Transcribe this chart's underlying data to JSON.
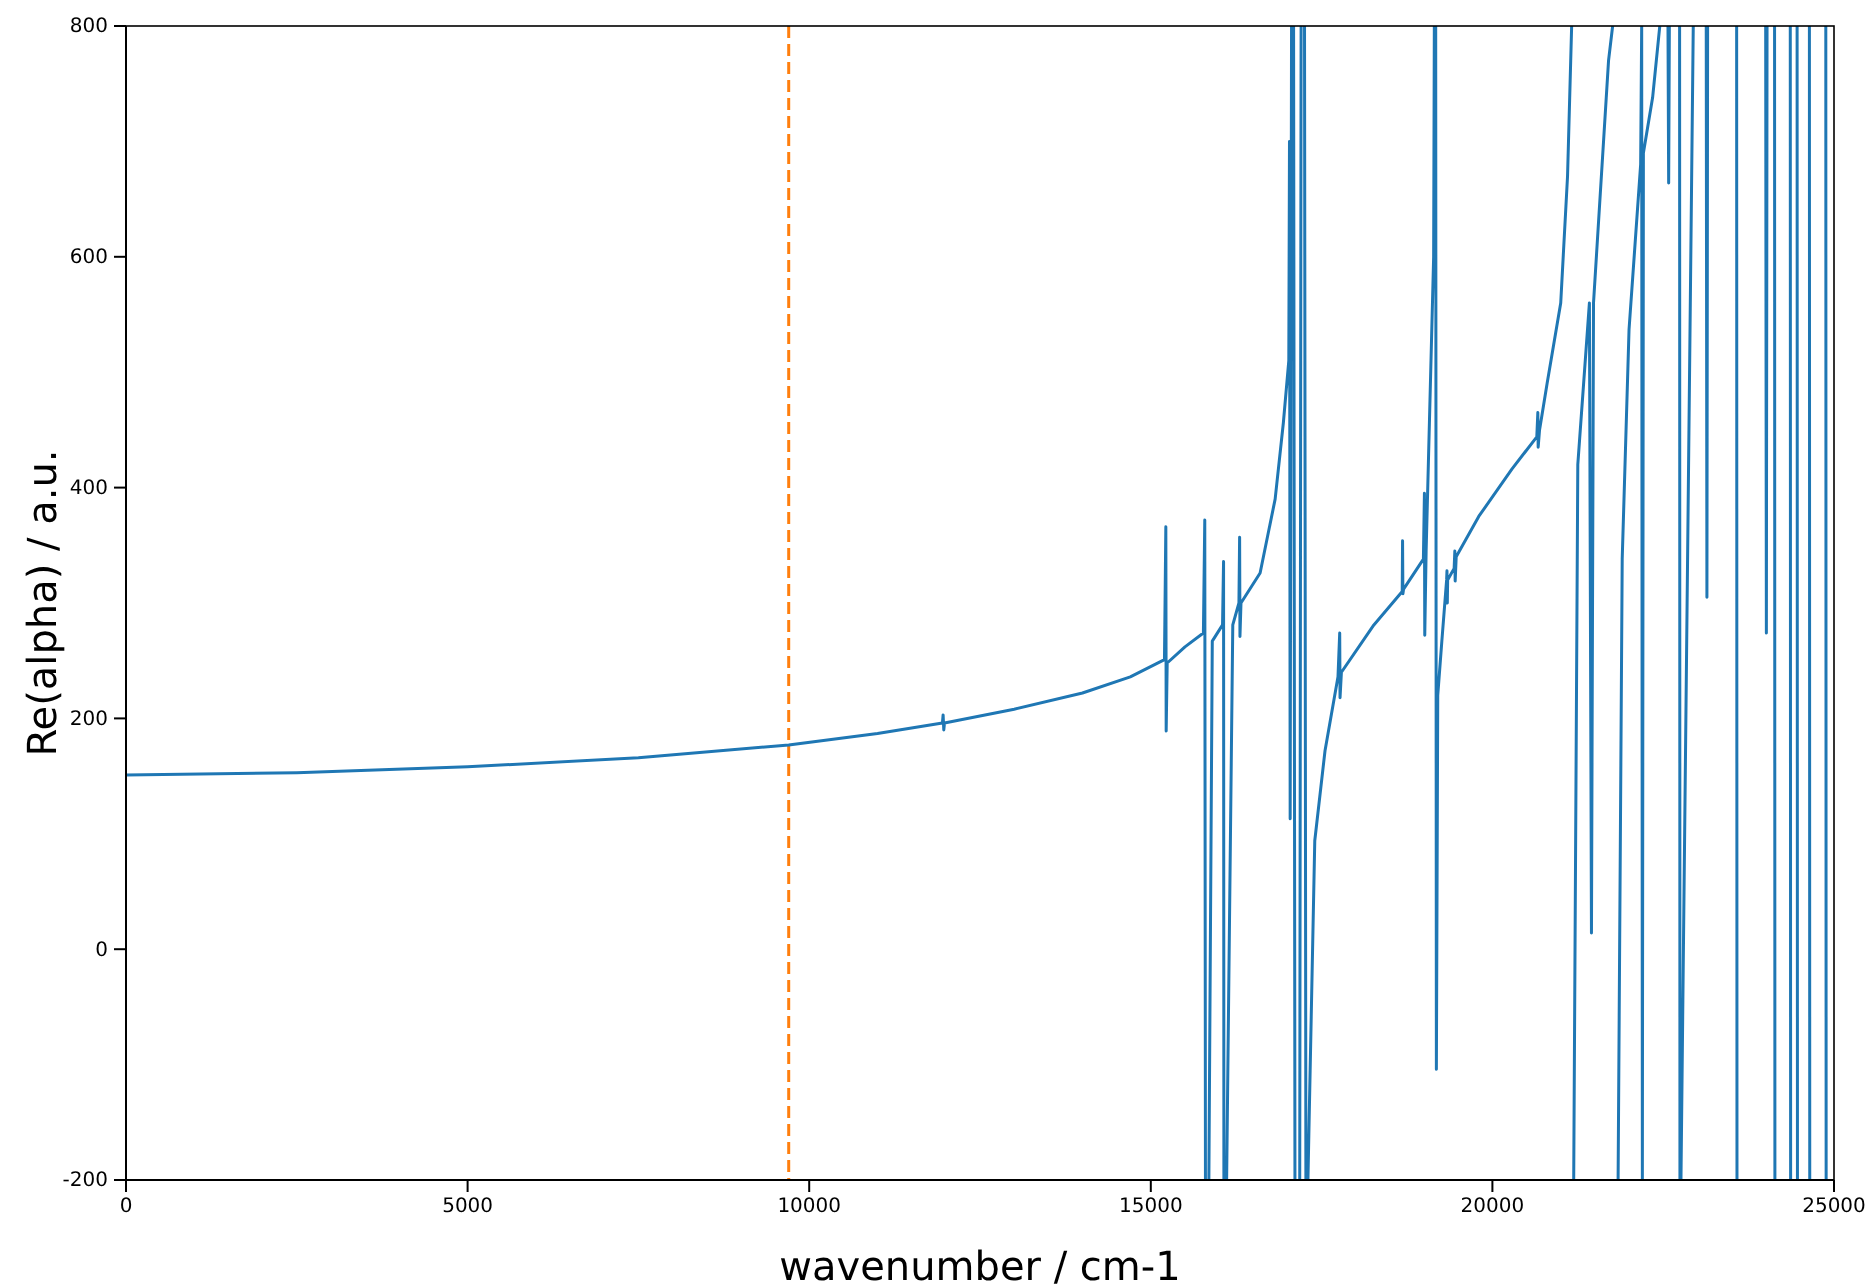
{
  "chart_data": {
    "type": "line",
    "xlabel": "wavenumber / cm-1",
    "ylabel": "Re(alpha) / a.u.",
    "xlim": [
      0,
      25000
    ],
    "ylim": [
      -200,
      800
    ],
    "xticks": [
      0,
      5000,
      10000,
      15000,
      20000,
      25000
    ],
    "yticks": [
      -200,
      0,
      200,
      400,
      600,
      800
    ],
    "grid": false,
    "marker": "none",
    "line_style": "solid",
    "ref_lines": [
      {
        "axis": "x",
        "value": 9700,
        "color": "#ff7f0e",
        "line_style": "dashed"
      }
    ],
    "series": [
      {
        "color": "#1f77b4",
        "x": [
          0,
          2500,
          5000,
          7500,
          9700,
          11000,
          11950,
          11960,
          11970,
          11980,
          13000,
          14000,
          14700,
          15200,
          15220,
          15225,
          15240,
          15500,
          15770,
          15790,
          15800,
          15825,
          15850,
          15900,
          16050,
          16065,
          16070,
          16090,
          16110,
          16200,
          16290,
          16300,
          16305,
          16320,
          16600,
          16820,
          16940,
          17020,
          17030,
          17040,
          17060,
          17075,
          17090,
          17110,
          17145,
          17180,
          17200,
          17225,
          17250,
          17270,
          17285,
          17300,
          17400,
          17550,
          17740,
          17765,
          17770,
          17790,
          18265,
          18680,
          18685,
          18690,
          18700,
          18990,
          19005,
          19010,
          19030,
          19140,
          19150,
          19160,
          19170,
          19180,
          19200,
          19260,
          19330,
          19335,
          19340,
          19345,
          19440,
          19450,
          19455,
          19470,
          19800,
          20285,
          20650,
          20665,
          20670,
          20690,
          20800,
          21000,
          21100,
          21160,
          21175,
          21190,
          21250,
          21420,
          21450,
          21480,
          21700,
          21760,
          21800,
          21840,
          21900,
          22000,
          22170,
          22185,
          22195,
          22210,
          22345,
          22450,
          22510,
          22570,
          22580,
          22590,
          22665,
          22740,
          22745,
          22750,
          22760,
          22850,
          22940,
          23030,
          23130,
          23140,
          23150,
          23360,
          23575,
          23580,
          23790,
          24000,
          24010,
          24020,
          24075,
          24130,
          24135,
          24250,
          24360,
          24365,
          24410,
          24460,
          24465,
          24550,
          24640,
          24645,
          24750,
          24880,
          24885
        ],
        "values": [
          151,
          153,
          158,
          166,
          177,
          187,
          196,
          203,
          190,
          196,
          208,
          222,
          236,
          251,
          366,
          189,
          248,
          262,
          274,
          372,
          -200,
          null,
          -200,
          267,
          281,
          336,
          -200,
          null,
          -200,
          281,
          300,
          357,
          271,
          300,
          326,
          390,
          456,
          510,
          700,
          113,
          800,
          null,
          800,
          -200,
          null,
          -200,
          800,
          null,
          800,
          -200,
          null,
          -200,
          94,
          172,
          236,
          274,
          218,
          240,
          281,
          310,
          354,
          308,
          312,
          338,
          395,
          272,
          345,
          600,
          800,
          null,
          800,
          -104,
          220,
          267,
          320,
          328,
          300,
          320,
          330,
          345,
          319,
          340,
          375,
          416,
          444,
          465,
          435,
          450,
          490,
          560,
          670,
          800,
          null,
          -200,
          420,
          560,
          14,
          560,
          770,
          800,
          null,
          -200,
          338,
          537,
          680,
          800,
          -200,
          690,
          738,
          800,
          null,
          800,
          664,
          800,
          null,
          800,
          -200,
          null,
          -200,
          300,
          800,
          null,
          800,
          305,
          800,
          null,
          800,
          -200,
          null,
          800,
          274,
          800,
          null,
          800,
          -200,
          null,
          800,
          -200,
          null,
          800,
          -200,
          null,
          800,
          -200,
          null,
          800,
          -200
        ]
      }
    ]
  }
}
